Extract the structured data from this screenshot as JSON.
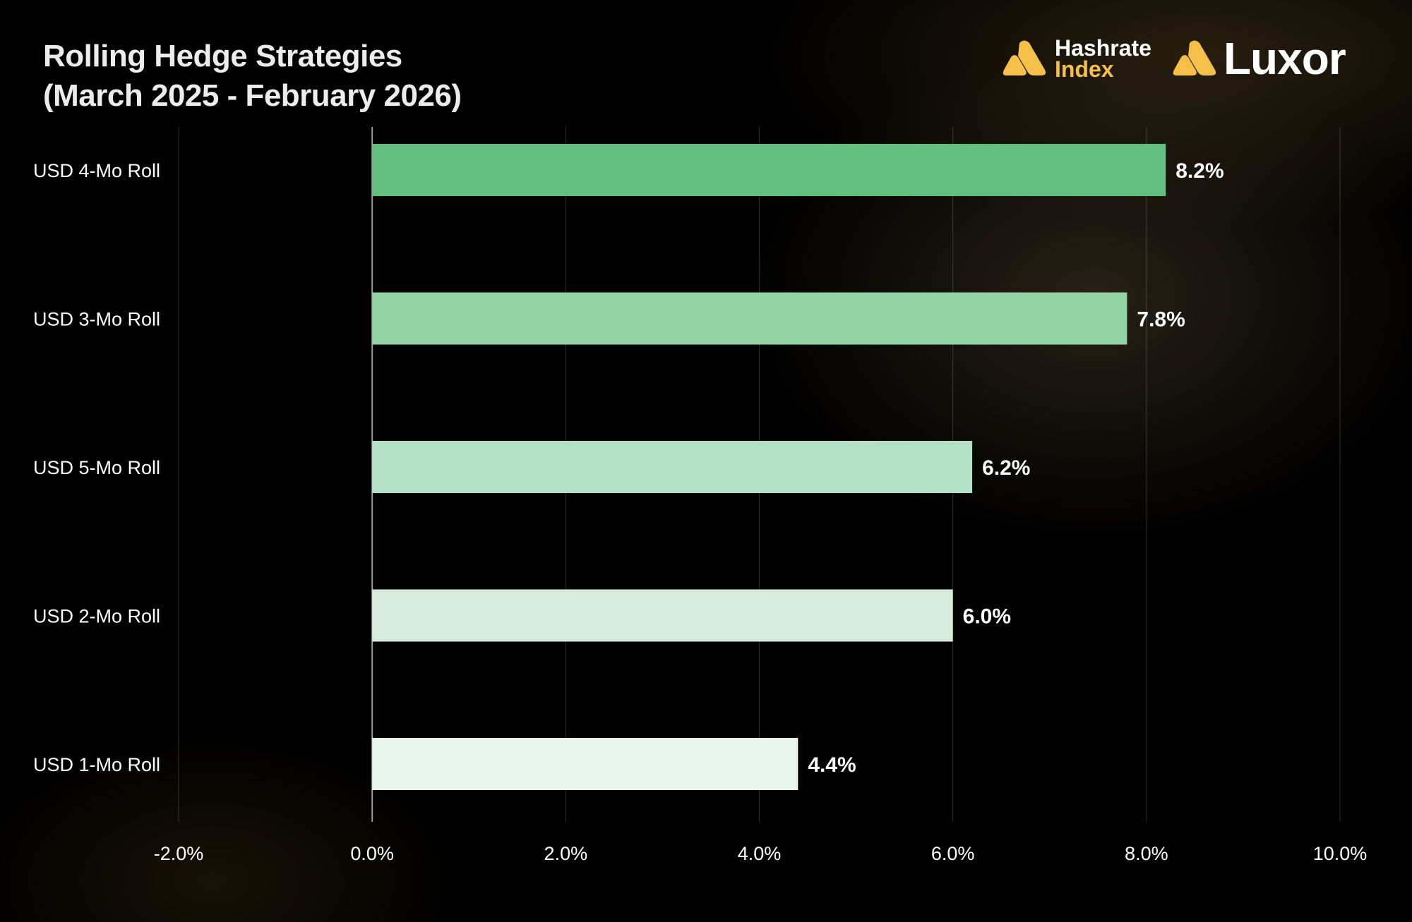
{
  "header": {
    "title_line1": "Rolling Hedge Strategies",
    "title_line2": "(March  2025 - February 2026)"
  },
  "logos": {
    "hashrate_index_line1": "Hashrate",
    "hashrate_index_line2": "Index",
    "luxor": "Luxor",
    "brand_color": "#f5c04a"
  },
  "chart_data": {
    "type": "bar",
    "orientation": "horizontal",
    "title": "Rolling Hedge Strategies (March  2025 - February 2026)",
    "xlabel": "",
    "ylabel": "",
    "categories": [
      "USD 4-Mo Roll",
      "USD 3-Mo Roll",
      "USD 5-Mo Roll",
      "USD 2-Mo Roll",
      "USD 1-Mo Roll"
    ],
    "values": [
      8.2,
      7.8,
      6.2,
      6.0,
      4.4
    ],
    "value_labels": [
      "8.2%",
      "7.8%",
      "6.2%",
      "6.0%",
      "4.4%"
    ],
    "colors": [
      "#63bf7d",
      "#91d2a2",
      "#b4e0c5",
      "#d5ecdc",
      "#e7f4ec"
    ],
    "xlim": [
      -2.0,
      10.0
    ],
    "xticks": [
      -2,
      0,
      2,
      4,
      6,
      8,
      10
    ],
    "xtick_labels": [
      "-2.0%",
      "0.0%",
      "2.0%",
      "4.0%",
      "6.0%",
      "8.0%",
      "10.0%"
    ],
    "grid": true,
    "legend": "none"
  }
}
